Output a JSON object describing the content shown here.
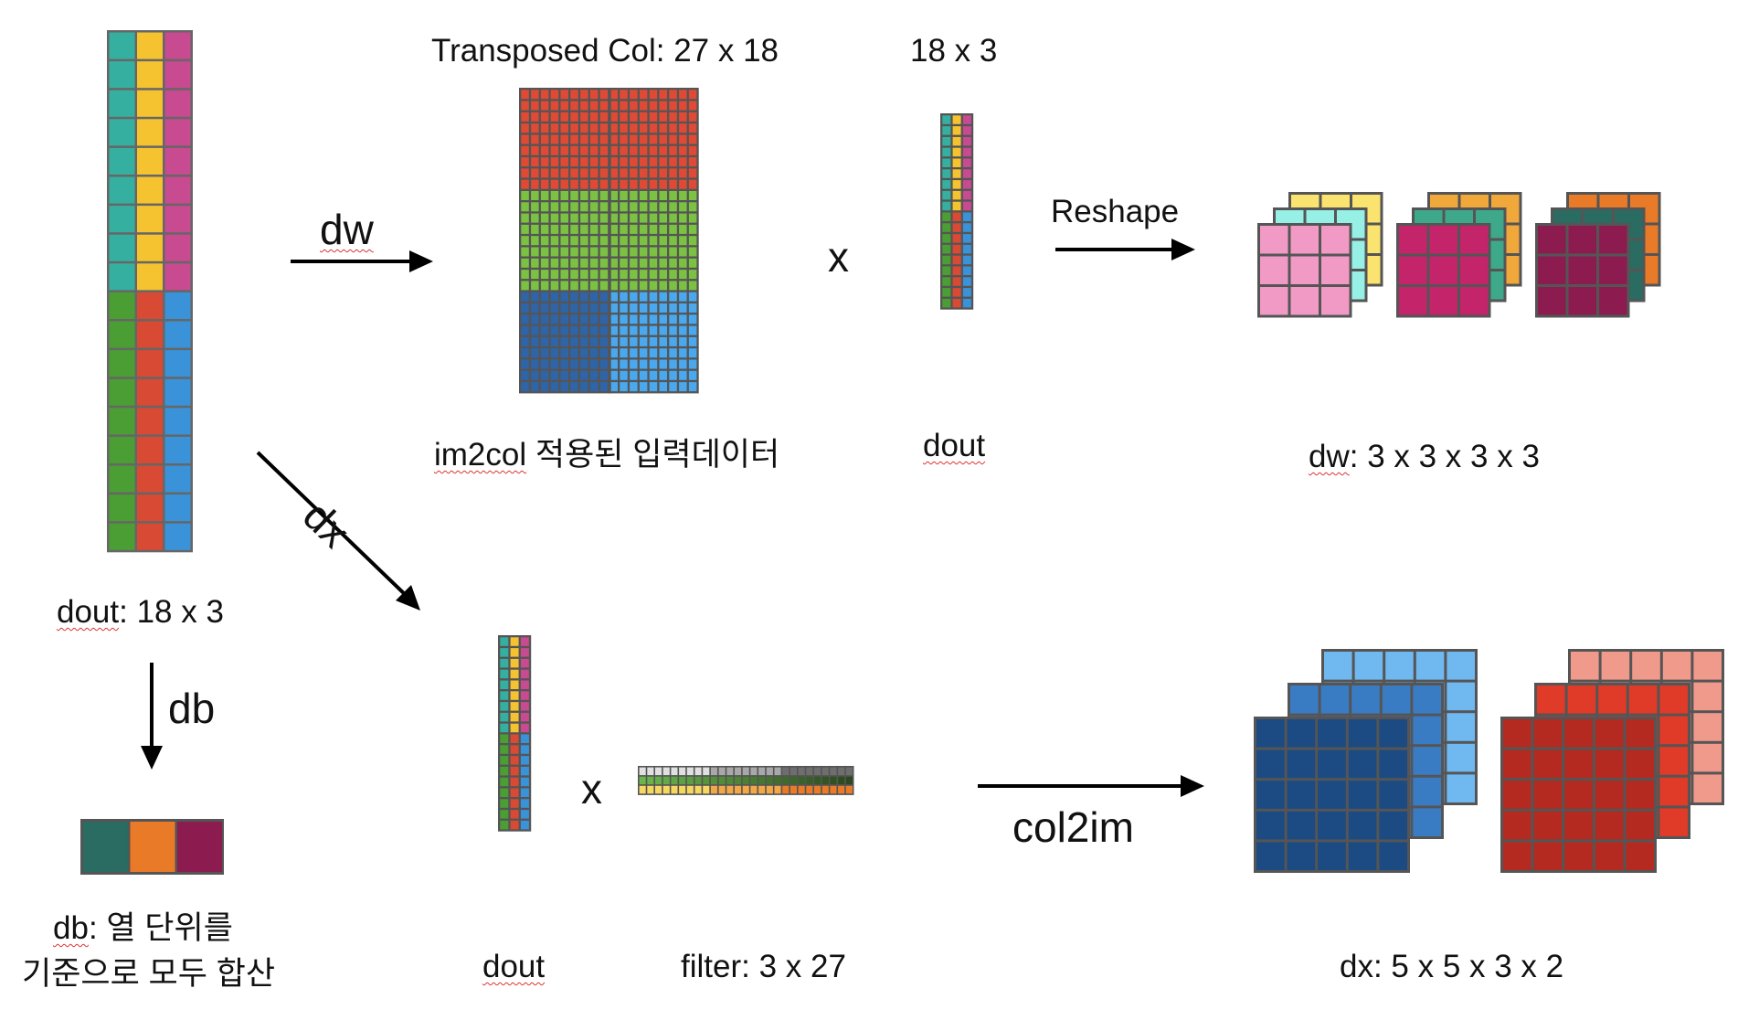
{
  "labels": {
    "transposed_col": "Transposed Col: 27 x 18",
    "dout_shape_top": "18 x 3",
    "dw_arrow": "dw",
    "mult_top": "x",
    "reshape": "Reshape",
    "im2col_prefix": "im2col",
    "im2col_rest": " 적용된 입력데이터",
    "dout_mid": "dout",
    "dw_result_prefix": "dw",
    "dw_result_rest": ": 3 x 3 x 3 x 3",
    "dx_arrow": "dx",
    "dout_left_prefix": "dout",
    "dout_left_rest": ": 18 x 3",
    "db_arrow": "db",
    "mult_bottom": "x",
    "col2im": "col2im",
    "db_result_prefix": "db",
    "db_result_line1_rest": ": 열 단위를",
    "db_result_line2": "기준으로 모두 합산",
    "dout_bottom": "dout",
    "filter": "filter: 3 x 27",
    "dx_result": "dx: 5 x 5 x 3 x 2"
  },
  "colors": {
    "teal": "#35b0a0",
    "yellow": "#f5c230",
    "magenta": "#c84a90",
    "green": "#4a9e34",
    "red": "#d84a34",
    "blue": "#3a92d8",
    "grid_red": "#e04a35",
    "grid_green": "#7cc242",
    "grid_blue_dark": "#2e64a8",
    "grid_blue_light": "#4aa8ee",
    "dw_pink": "#f29ac6",
    "dw_cyan": "#96f0e6",
    "dw_yellow": "#fbe370",
    "dw_crimson": "#c4246a",
    "dw_green": "#3ea88a",
    "dw_orange": "#f0a83a",
    "dw_maroon": "#8c1c50",
    "dw_darkteal": "#2a6b62",
    "dw_orange2": "#e87a28",
    "dx_navy": "#1c4a82",
    "dx_blue": "#3a7cc4",
    "dx_lightblue": "#70b8f0",
    "dx_darkred": "#b42a20",
    "dx_red": "#e03a28",
    "dx_salmon": "#f09a8c",
    "db_teal": "#2a6b62",
    "db_orange": "#e87a28",
    "db_maroon": "#8c1c50"
  }
}
